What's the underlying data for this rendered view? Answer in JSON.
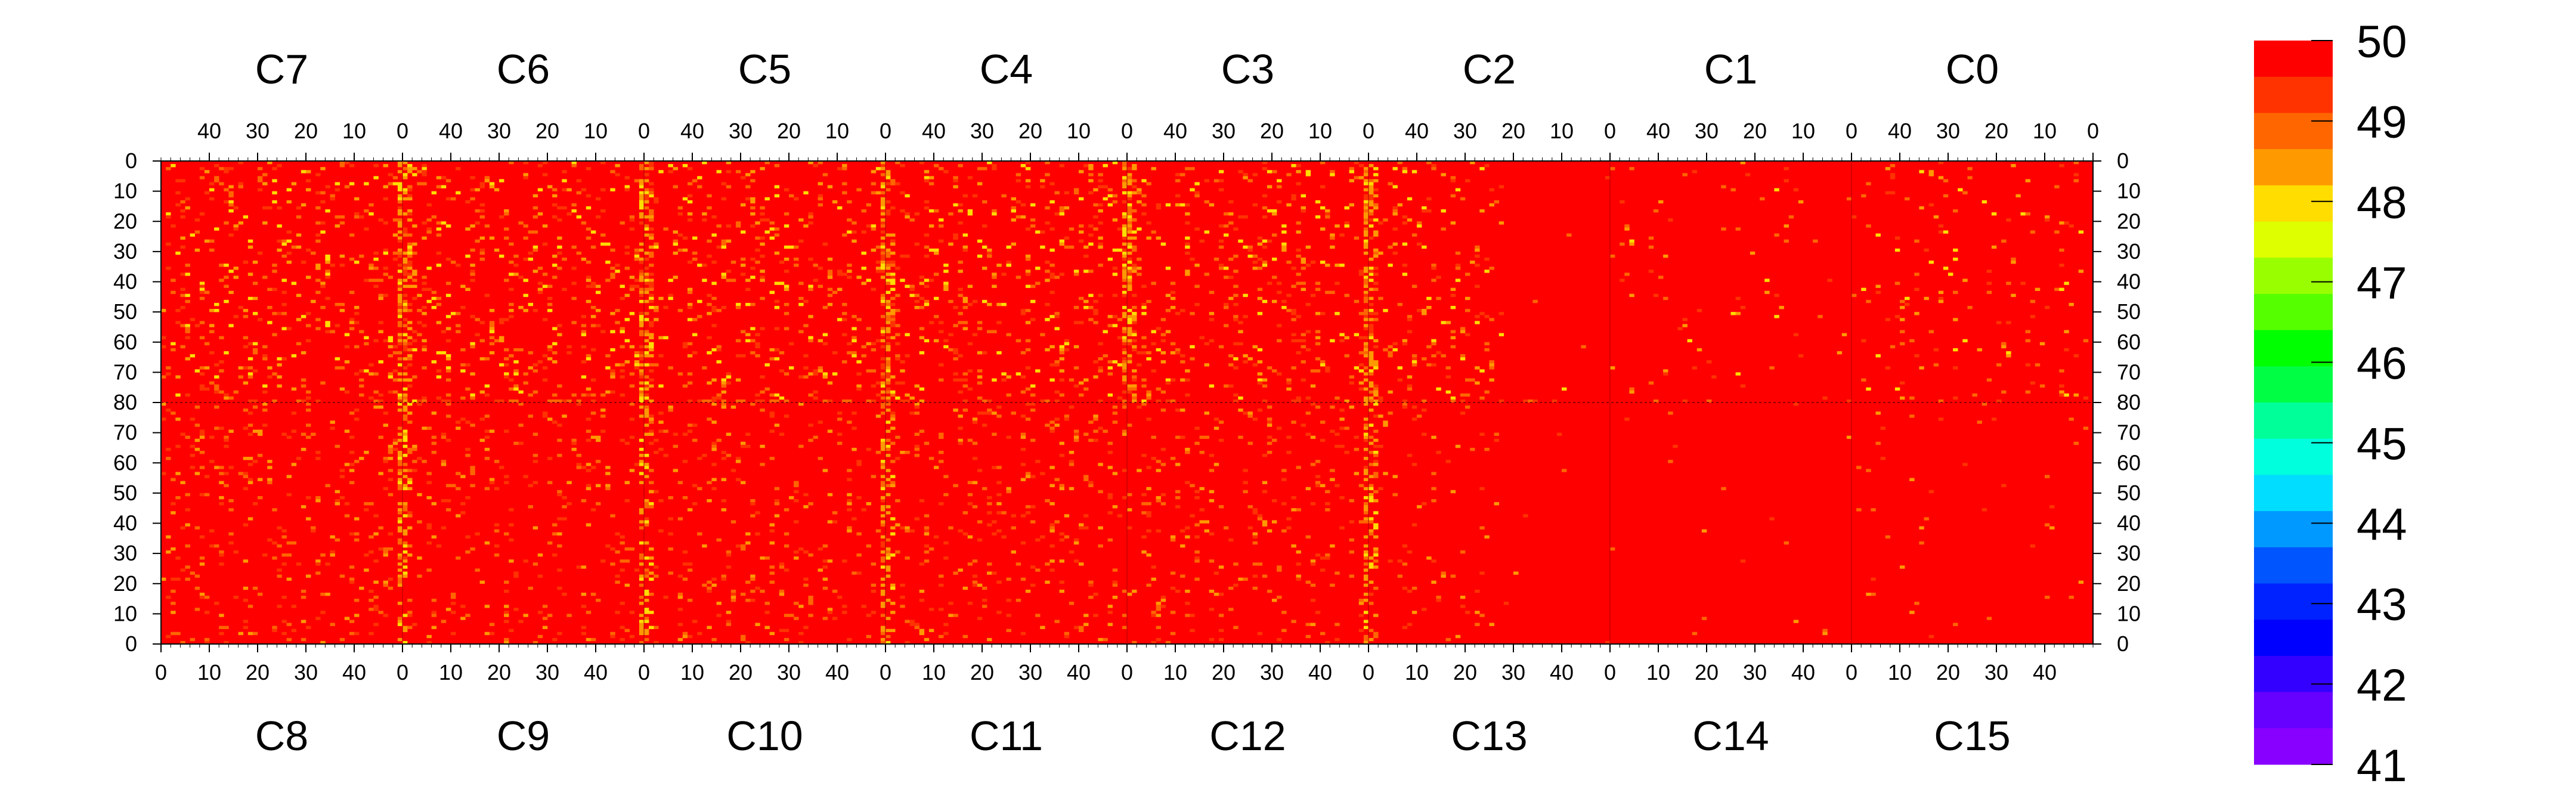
{
  "chart_data": {
    "type": "heatmap",
    "top_sectors": [
      "C7",
      "C6",
      "C5",
      "C4",
      "C3",
      "C2",
      "C1",
      "C0"
    ],
    "bottom_sectors": [
      "C8",
      "C9",
      "C10",
      "C11",
      "C12",
      "C13",
      "C14",
      "C15"
    ],
    "top_axis_ticks": [
      "40",
      "30",
      "20",
      "10",
      "0"
    ],
    "bottom_axis_ticks": [
      "0",
      "10",
      "20",
      "30",
      "40"
    ],
    "left_axis_ticks": [
      "0",
      "10",
      "20",
      "30",
      "40",
      "50",
      "60",
      "70",
      "80",
      "70",
      "60",
      "50",
      "40",
      "30",
      "20",
      "10",
      "0"
    ],
    "right_axis_ticks": [
      "0",
      "10",
      "20",
      "30",
      "40",
      "50",
      "60",
      "70",
      "80",
      "70",
      "60",
      "50",
      "40",
      "30",
      "20",
      "10",
      "0"
    ],
    "columns_per_sector": 50,
    "rows_per_half": 80,
    "zlim": [
      41,
      50
    ],
    "colorbar_ticks": [
      "50",
      "49",
      "48",
      "47",
      "46",
      "45",
      "44",
      "43",
      "42",
      "41"
    ],
    "colorbar_colors": [
      "#ff0000",
      "#ff3300",
      "#ff6600",
      "#ff9900",
      "#ffdd00",
      "#ddff00",
      "#99ff00",
      "#55ff00",
      "#00ff00",
      "#00ff44",
      "#00ff99",
      "#00ffdd",
      "#00ddff",
      "#0099ff",
      "#0055ff",
      "#0022ff",
      "#0000ff",
      "#3300ff",
      "#6600ff",
      "#8800ff"
    ],
    "base_color": "#ff0000",
    "hot_columns": [
      {
        "sector": "C6",
        "column": 1
      },
      {
        "sector": "C5",
        "column": 1
      },
      {
        "sector": "C4",
        "column": 1
      },
      {
        "sector": "C3",
        "column": 1
      },
      {
        "sector": "C2",
        "column": 1
      },
      {
        "sector": "C9",
        "column": 1
      },
      {
        "sector": "C10",
        "column": 1
      },
      {
        "sector": "C11",
        "column": 1
      },
      {
        "sector": "C13",
        "column": 1
      }
    ]
  }
}
